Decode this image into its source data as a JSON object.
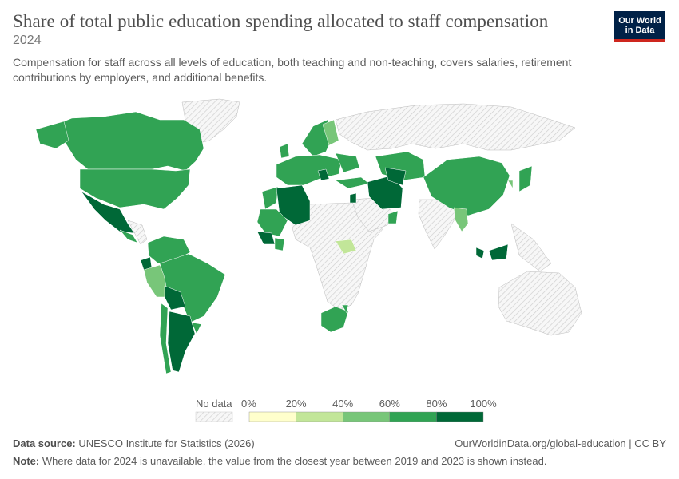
{
  "header": {
    "title": "Share of total public education spending allocated to staff compensation",
    "year": "2024",
    "subtitle": "Compensation for staff across all levels of education, both teaching and non-teaching, covers salaries, retirement contributions by employers, and additional benefits."
  },
  "logo": {
    "line1": "Our World",
    "line2": "in Data"
  },
  "legend": {
    "no_data_label": "No data",
    "ticks": [
      "0%",
      "20%",
      "40%",
      "60%",
      "80%",
      "100%"
    ],
    "colors": [
      "#ffffcc",
      "#c2e699",
      "#78c679",
      "#31a354",
      "#006837"
    ],
    "no_data_color": "#e8e8e8"
  },
  "footer": {
    "source_label": "Data source:",
    "source_text": "UNESCO Institute for Statistics (2026)",
    "url_text": "OurWorldinData.org/global-education | CC BY",
    "note_label": "Note:",
    "note_text": "Where data for 2024 is unavailable, the value from the closest year between 2019 and 2023 is shown instead."
  },
  "colors": {
    "nodata_hatch": "#d0d0d0",
    "border": "#ffffff"
  }
}
